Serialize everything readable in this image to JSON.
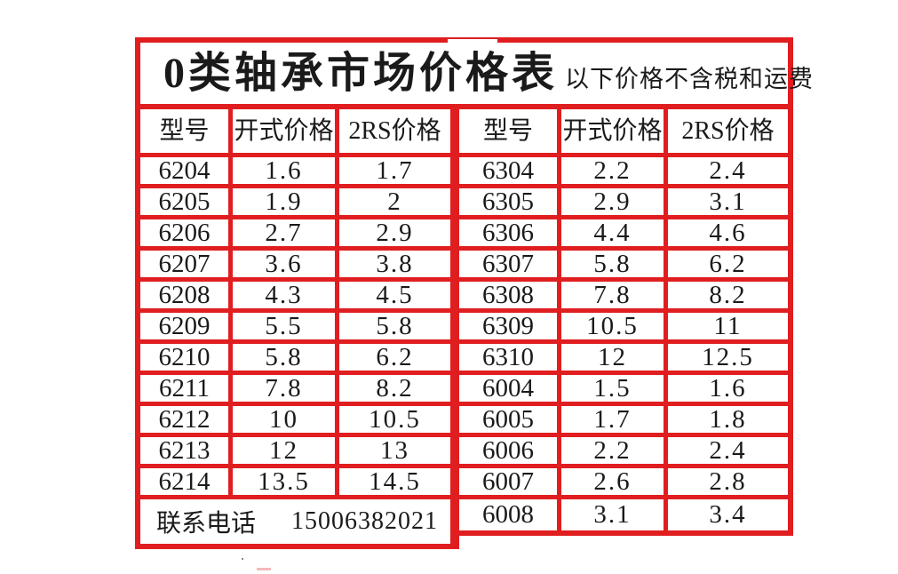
{
  "table": {
    "title": "0类轴承市场价格表",
    "subtitle": "以下价格不含税和运费",
    "border_color": "#e01e20",
    "headers": [
      "型号",
      "开式价格",
      "2RS价格"
    ],
    "left": {
      "rows": [
        {
          "model": "6204",
          "open": "1.6",
          "rs": "1.7"
        },
        {
          "model": "6205",
          "open": "1.9",
          "rs": "2"
        },
        {
          "model": "6206",
          "open": "2.7",
          "rs": "2.9"
        },
        {
          "model": "6207",
          "open": "3.6",
          "rs": "3.8"
        },
        {
          "model": "6208",
          "open": "4.3",
          "rs": "4.5"
        },
        {
          "model": "6209",
          "open": "5.5",
          "rs": "5.8"
        },
        {
          "model": "6210",
          "open": "5.8",
          "rs": "6.2"
        },
        {
          "model": "6211",
          "open": "7.8",
          "rs": "8.2"
        },
        {
          "model": "6212",
          "open": "10",
          "rs": "10.5"
        },
        {
          "model": "6213",
          "open": "12",
          "rs": "13"
        },
        {
          "model": "6214",
          "open": "13.5",
          "rs": "14.5"
        }
      ]
    },
    "right": {
      "rows": [
        {
          "model": "6304",
          "open": "2.2",
          "rs": "2.4"
        },
        {
          "model": "6305",
          "open": "2.9",
          "rs": "3.1"
        },
        {
          "model": "6306",
          "open": "4.4",
          "rs": "4.6"
        },
        {
          "model": "6307",
          "open": "5.8",
          "rs": "6.2"
        },
        {
          "model": "6308",
          "open": "7.8",
          "rs": "8.2"
        },
        {
          "model": "6309",
          "open": "10.5",
          "rs": "11"
        },
        {
          "model": "6310",
          "open": "12",
          "rs": "12.5"
        },
        {
          "model": "6004",
          "open": "1.5",
          "rs": "1.6"
        },
        {
          "model": "6005",
          "open": "1.7",
          "rs": "1.8"
        },
        {
          "model": "6006",
          "open": "2.2",
          "rs": "2.4"
        },
        {
          "model": "6007",
          "open": "2.6",
          "rs": "2.8"
        },
        {
          "model": "6008",
          "open": "3.1",
          "rs": "3.4"
        }
      ]
    },
    "footer": {
      "label": "联系电话",
      "phone": "15006382021"
    }
  }
}
